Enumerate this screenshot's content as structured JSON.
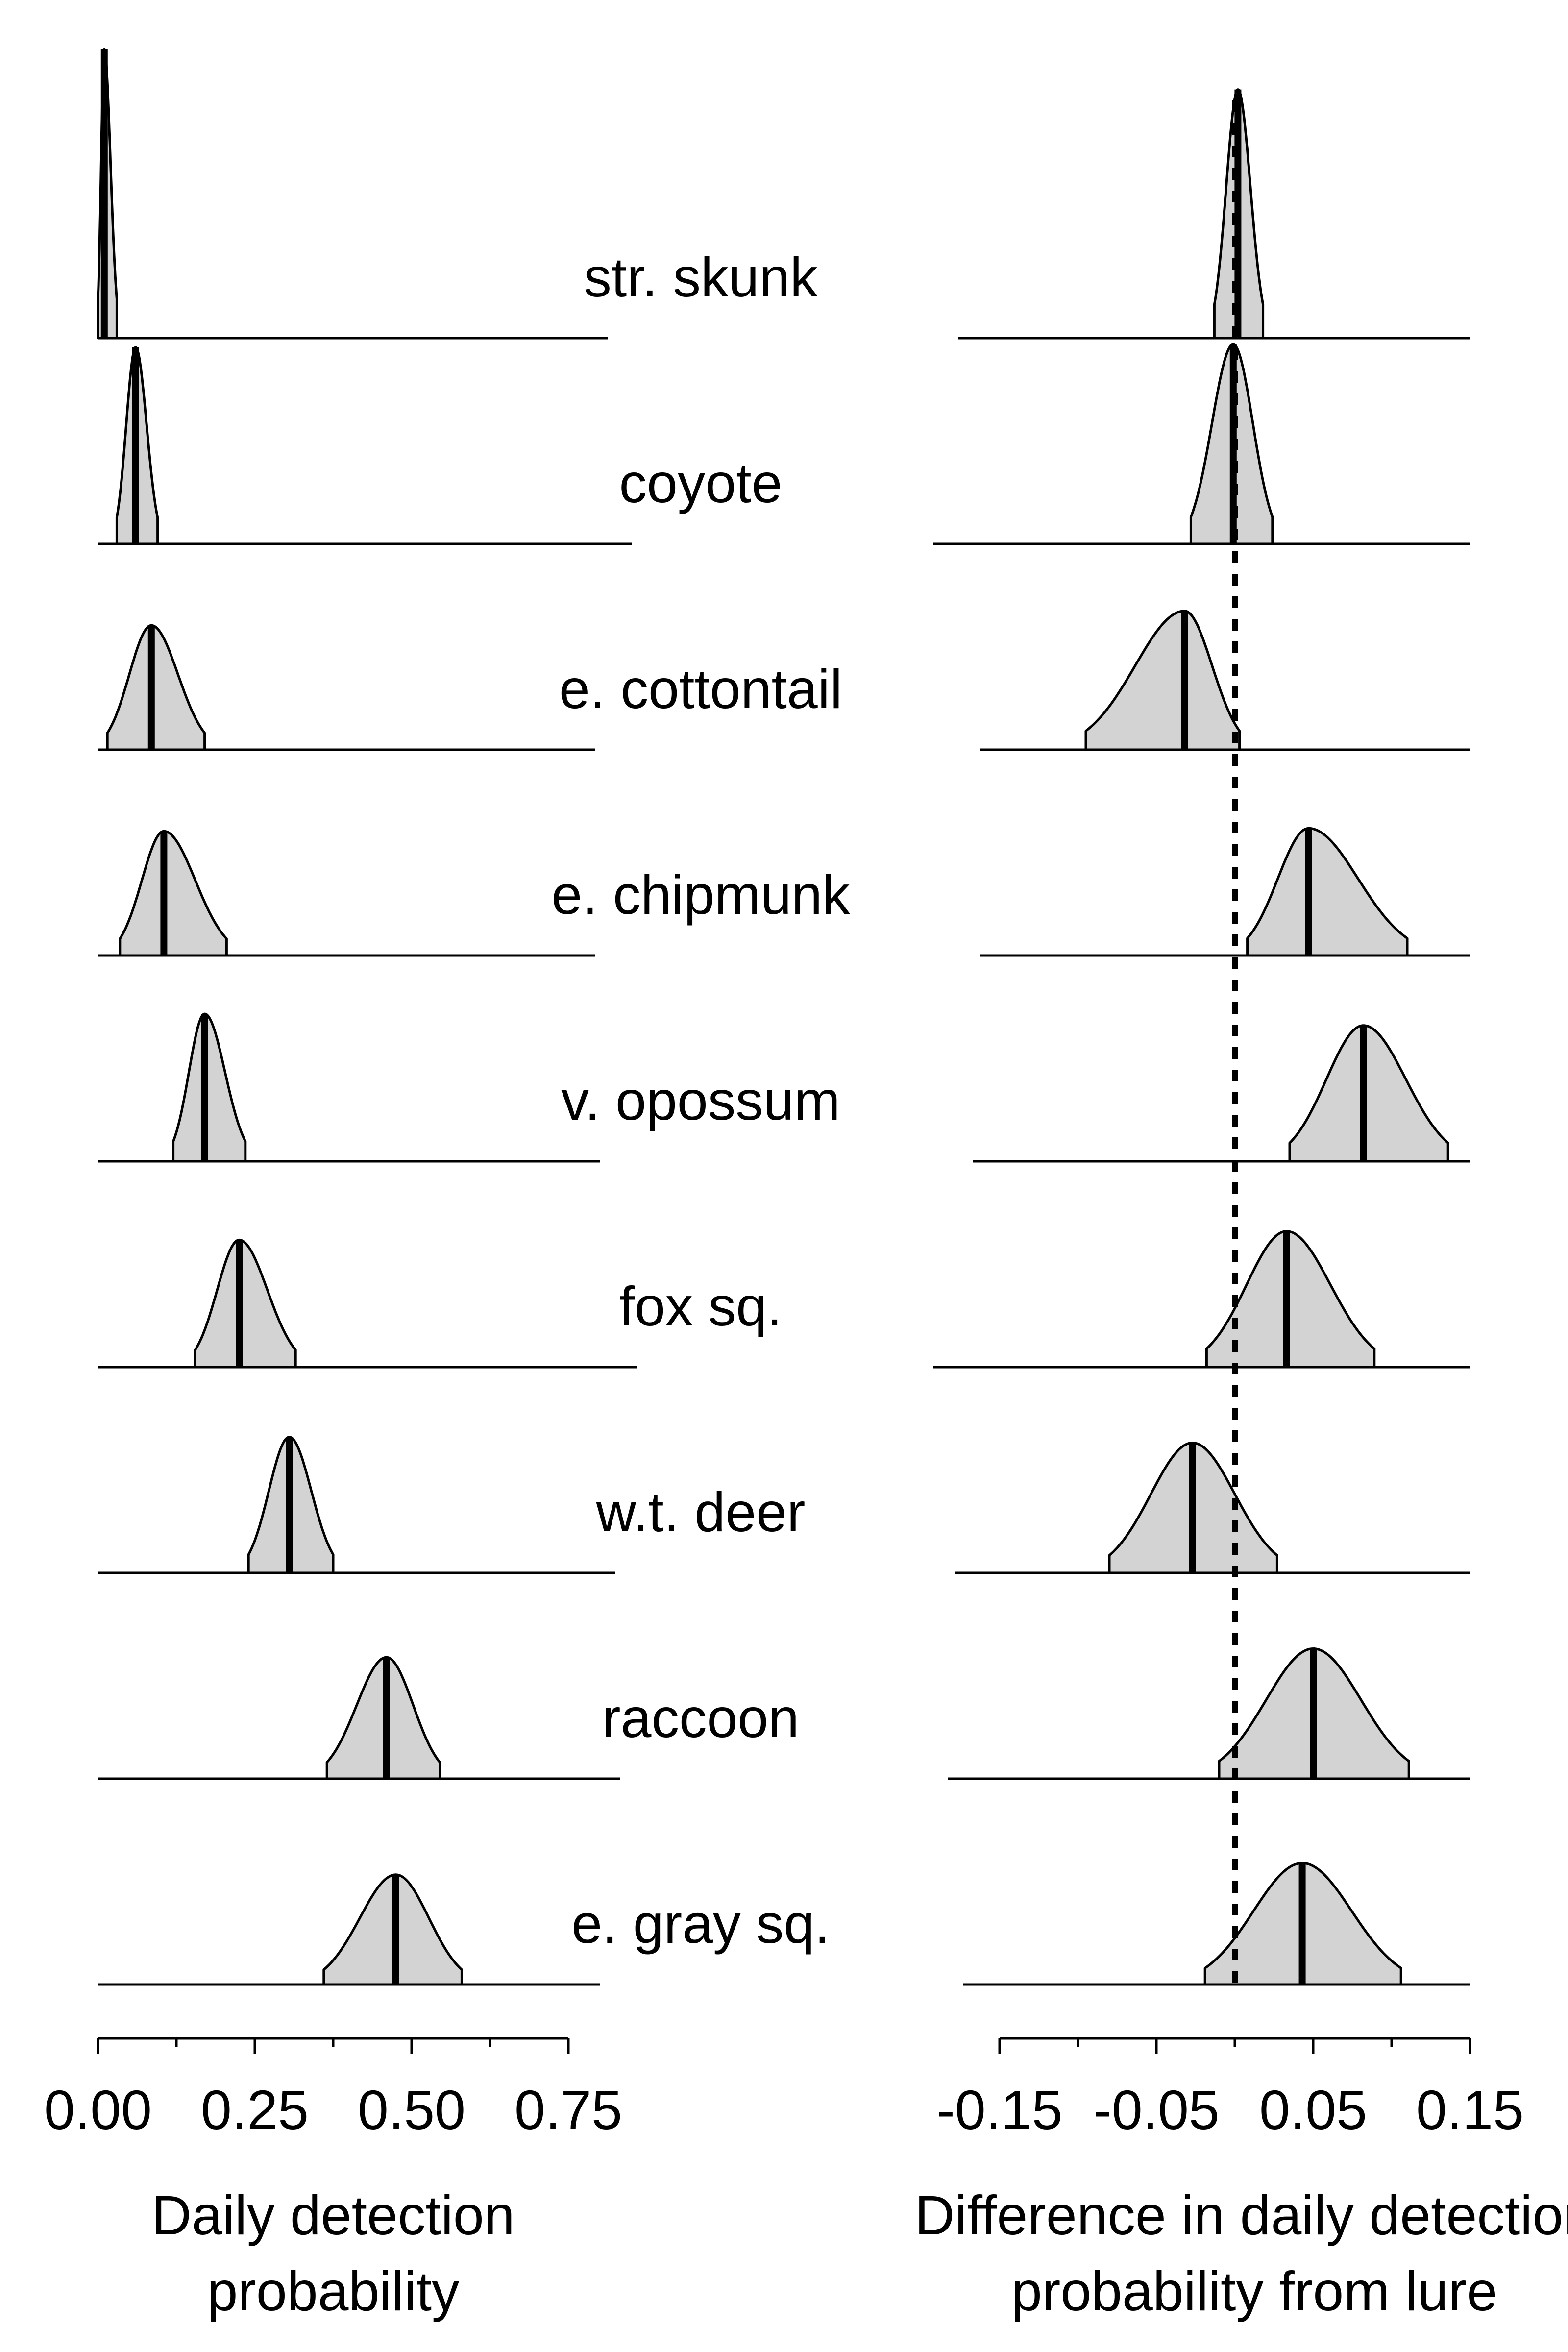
{
  "chart_data": {
    "type": "ridgeline",
    "species": [
      "str. skunk",
      "coyote",
      "e. cottontail",
      "e. chipmunk",
      "v. opossum",
      "fox sq.",
      "w.t. deer",
      "raccoon",
      "e. gray sq."
    ],
    "panels": [
      {
        "id": "detection",
        "xlabel_lines": [
          "Daily detection",
          "probability"
        ],
        "xlim": [
          0,
          0.75
        ],
        "ticks": [
          0.0,
          0.25,
          0.5,
          0.75
        ],
        "tick_labels": [
          "0.00",
          "0.25",
          "0.50",
          "0.75"
        ],
        "minor_ticks": [
          0.125,
          0.375,
          0.625
        ],
        "series": [
          {
            "species": "str. skunk",
            "mean": 0.01,
            "lower": 0.0,
            "upper": 0.03,
            "peak": 1.0
          },
          {
            "species": "coyote",
            "mean": 0.06,
            "lower": 0.03,
            "upper": 0.095,
            "peak": 0.68
          },
          {
            "species": "e. cottontail",
            "mean": 0.085,
            "lower": 0.015,
            "upper": 0.17,
            "peak": 0.43
          },
          {
            "species": "e. chipmunk",
            "mean": 0.105,
            "lower": 0.035,
            "upper": 0.205,
            "peak": 0.43
          },
          {
            "species": "v. opossum",
            "mean": 0.17,
            "lower": 0.12,
            "upper": 0.235,
            "peak": 0.51
          },
          {
            "species": "fox sq.",
            "mean": 0.225,
            "lower": 0.155,
            "upper": 0.315,
            "peak": 0.44
          },
          {
            "species": "w.t. deer",
            "mean": 0.305,
            "lower": 0.24,
            "upper": 0.375,
            "peak": 0.47
          },
          {
            "species": "raccoon",
            "mean": 0.46,
            "lower": 0.365,
            "upper": 0.545,
            "peak": 0.42
          },
          {
            "species": "e. gray sq.",
            "mean": 0.475,
            "lower": 0.36,
            "upper": 0.58,
            "peak": 0.38
          }
        ]
      },
      {
        "id": "difference",
        "xlabel_lines": [
          "Difference in daily detection",
          "probability from lure"
        ],
        "xlim": [
          -0.15,
          0.15
        ],
        "ticks": [
          -0.15,
          -0.05,
          0.05,
          0.15
        ],
        "tick_labels": [
          "-0.15",
          "-0.05",
          "0.05",
          "0.15"
        ],
        "minor_ticks": [
          -0.1,
          0.0,
          0.1
        ],
        "zero_line": 0.0,
        "series": [
          {
            "species": "str. skunk",
            "mean": 0.002,
            "lower": -0.013,
            "upper": 0.018,
            "peak": 0.86
          },
          {
            "species": "coyote",
            "mean": -0.001,
            "lower": -0.028,
            "upper": 0.024,
            "peak": 0.69
          },
          {
            "species": "e. cottontail",
            "mean": -0.032,
            "lower": -0.095,
            "upper": 0.003,
            "peak": 0.48
          },
          {
            "species": "e. chipmunk",
            "mean": 0.047,
            "lower": 0.008,
            "upper": 0.11,
            "peak": 0.44
          },
          {
            "species": "v. opossum",
            "mean": 0.082,
            "lower": 0.035,
            "upper": 0.136,
            "peak": 0.47
          },
          {
            "species": "fox sq.",
            "mean": 0.033,
            "lower": -0.018,
            "upper": 0.089,
            "peak": 0.47
          },
          {
            "species": "w.t. deer",
            "mean": -0.027,
            "lower": -0.08,
            "upper": 0.027,
            "peak": 0.45
          },
          {
            "species": "raccoon",
            "mean": 0.05,
            "lower": -0.01,
            "upper": 0.111,
            "peak": 0.45
          },
          {
            "species": "e. gray sq.",
            "mean": 0.043,
            "lower": -0.019,
            "upper": 0.106,
            "peak": 0.42
          }
        ]
      }
    ]
  }
}
